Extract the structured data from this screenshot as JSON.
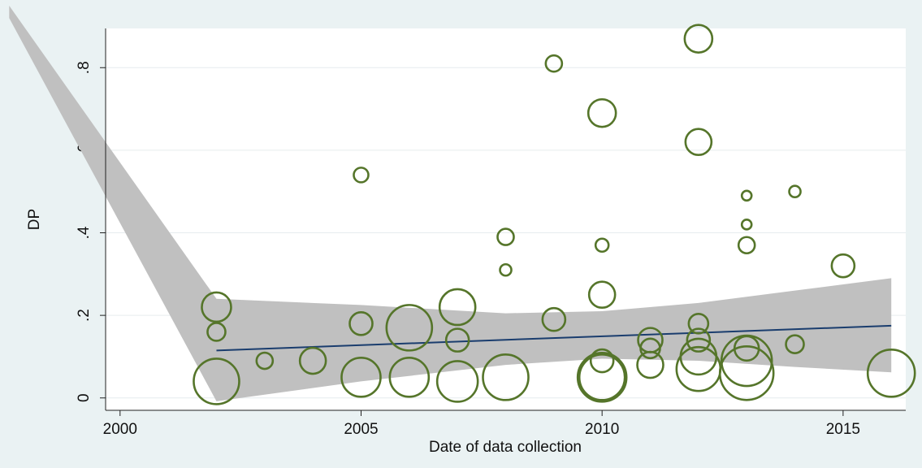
{
  "chart_data": {
    "type": "bubble",
    "xlabel": "Date of data collection",
    "ylabel": "DP",
    "xlim": [
      1999.7,
      2016.3
    ],
    "ylim": [
      -0.03,
      0.895
    ],
    "xticks": [
      2000,
      2005,
      2010,
      2015
    ],
    "yticks": [
      0,
      {
        "value": 0.2,
        "label": ".2"
      },
      {
        "value": 0.4,
        "label": ".4"
      },
      {
        "value": 0.6,
        "label": ".6"
      },
      {
        "value": 0.8,
        "label": ".8"
      }
    ],
    "grid": true,
    "series": [
      {
        "type": "area",
        "color": "#c0c0c0",
        "x": [
          1997.7,
          2002,
          2005,
          2008,
          2010,
          2012,
          2014,
          2016
        ],
        "upper": [
          0.95,
          0.24,
          0.225,
          0.205,
          0.21,
          0.23,
          0.26,
          0.29
        ],
        "lower": [
          0.92,
          -0.008,
          0.04,
          0.08,
          0.095,
          0.09,
          0.075,
          0.062
        ]
      },
      {
        "type": "line",
        "color": "#1a3d6e",
        "x": [
          2002,
          2016
        ],
        "values": [
          0.115,
          0.175
        ]
      },
      {
        "type": "bubble",
        "color": "#55752a",
        "x": [
          2002,
          2002,
          2002,
          2003,
          2004,
          2005,
          2005,
          2005,
          2006,
          2006,
          2007,
          2007,
          2007,
          2008,
          2008,
          2008,
          2009,
          2009,
          2010,
          2010,
          2010,
          2010,
          2010,
          2010,
          2011,
          2011,
          2011,
          2012,
          2012,
          2012,
          2012,
          2012,
          2012,
          2013,
          2013,
          2013,
          2013,
          2013,
          2013,
          2014,
          2014,
          2015,
          2016
        ],
        "values": [
          0.22,
          0.16,
          0.04,
          0.09,
          0.09,
          0.54,
          0.18,
          0.05,
          0.17,
          0.05,
          0.22,
          0.14,
          0.04,
          0.39,
          0.31,
          0.05,
          0.81,
          0.19,
          0.69,
          0.37,
          0.25,
          0.09,
          0.05,
          0.05,
          0.14,
          0.12,
          0.08,
          0.87,
          0.62,
          0.18,
          0.14,
          0.1,
          0.07,
          0.49,
          0.42,
          0.37,
          0.12,
          0.09,
          0.06,
          0.5,
          0.13,
          0.32,
          0.06
        ],
        "sizes": [
          18,
          11,
          28,
          10,
          16,
          9,
          14,
          24,
          28,
          24,
          22,
          14,
          25,
          10,
          7,
          28,
          10,
          14,
          17,
          8,
          16,
          14,
          30,
          28,
          15,
          12,
          16,
          17,
          16,
          12,
          14,
          22,
          27,
          6,
          6,
          10,
          15,
          31,
          33,
          7,
          11,
          14,
          29
        ]
      }
    ]
  }
}
